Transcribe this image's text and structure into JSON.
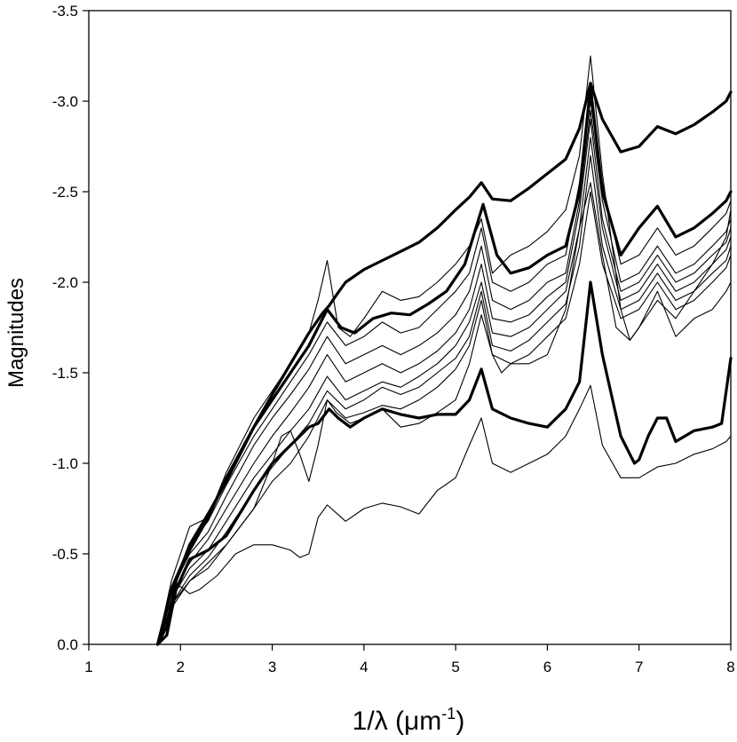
{
  "chart_data": {
    "type": "line",
    "title": "",
    "xlabel": "1/λ (μm⁻¹)",
    "xlabel_parts": {
      "base": "1/λ (μm",
      "sup": "-1",
      "close": ")"
    },
    "ylabel": "Magnitudes",
    "xlim": [
      1,
      8
    ],
    "ylim": [
      0.0,
      -3.5
    ],
    "y_axis_inverted": true,
    "grid": false,
    "legend": "none",
    "x_ticks": [
      "1",
      "2",
      "3",
      "4",
      "5",
      "6",
      "7",
      "8"
    ],
    "y_ticks": [
      "0.0",
      "-0.5",
      "-1.0",
      "-1.5",
      "-2.0",
      "-2.5",
      "-3.0",
      "-3.5"
    ],
    "line_color": "#000000",
    "series": [
      {
        "weight": "bold",
        "x": [
          1.75,
          1.85,
          1.95,
          2.1,
          2.3,
          2.5,
          2.8,
          3.0,
          3.2,
          3.4,
          3.55,
          3.62,
          3.7,
          3.8,
          4.0,
          4.2,
          4.4,
          4.6,
          4.8,
          5.0,
          5.15,
          5.28,
          5.4,
          5.6,
          5.8,
          6.0,
          6.2,
          6.35,
          6.47,
          6.6,
          6.8,
          7.0,
          7.2,
          7.4,
          7.6,
          7.8,
          7.95,
          8.0
        ],
        "y": [
          0.0,
          -0.1,
          -0.35,
          -0.55,
          -0.72,
          -0.9,
          -1.2,
          -1.38,
          -1.55,
          -1.72,
          -1.83,
          -1.87,
          -1.93,
          -2.0,
          -2.07,
          -2.12,
          -2.17,
          -2.22,
          -2.3,
          -2.4,
          -2.47,
          -2.55,
          -2.46,
          -2.45,
          -2.52,
          -2.6,
          -2.68,
          -2.85,
          -3.1,
          -2.9,
          -2.72,
          -2.75,
          -2.86,
          -2.82,
          -2.87,
          -2.94,
          -3.0,
          -3.05
        ]
      },
      {
        "weight": "bold",
        "x": [
          1.75,
          1.85,
          1.95,
          2.1,
          2.3,
          2.5,
          2.8,
          3.0,
          3.2,
          3.4,
          3.5,
          3.62,
          3.72,
          3.85,
          4.0,
          4.2,
          4.4,
          4.6,
          4.8,
          5.0,
          5.15,
          5.28,
          5.4,
          5.6,
          5.8,
          6.0,
          6.2,
          6.35,
          6.47,
          6.6,
          6.8,
          6.95,
          7.0,
          7.1,
          7.2,
          7.3,
          7.4,
          7.6,
          7.8,
          7.9,
          8.0
        ],
        "y": [
          0.0,
          -0.05,
          -0.3,
          -0.47,
          -0.52,
          -0.6,
          -0.85,
          -1.0,
          -1.1,
          -1.2,
          -1.22,
          -1.3,
          -1.25,
          -1.2,
          -1.25,
          -1.3,
          -1.27,
          -1.25,
          -1.27,
          -1.27,
          -1.35,
          -1.52,
          -1.3,
          -1.25,
          -1.22,
          -1.2,
          -1.3,
          -1.45,
          -2.0,
          -1.6,
          -1.15,
          -1.0,
          -1.02,
          -1.15,
          -1.25,
          -1.25,
          -1.12,
          -1.18,
          -1.2,
          -1.22,
          -1.58
        ]
      },
      {
        "weight": "bold",
        "x": [
          1.75,
          1.9,
          2.1,
          2.3,
          2.5,
          2.8,
          3.0,
          3.2,
          3.4,
          3.6,
          3.75,
          3.9,
          4.1,
          4.3,
          4.5,
          4.7,
          4.9,
          5.1,
          5.3,
          5.45,
          5.6,
          5.8,
          6.0,
          6.2,
          6.35,
          6.47,
          6.6,
          6.8,
          7.0,
          7.2,
          7.4,
          7.6,
          7.8,
          7.95,
          8.0
        ],
        "y": [
          0.0,
          -0.3,
          -0.52,
          -0.7,
          -0.92,
          -1.2,
          -1.35,
          -1.5,
          -1.65,
          -1.85,
          -1.75,
          -1.72,
          -1.8,
          -1.83,
          -1.82,
          -1.88,
          -1.95,
          -2.1,
          -2.43,
          -2.15,
          -2.05,
          -2.08,
          -2.15,
          -2.2,
          -2.5,
          -3.08,
          -2.5,
          -2.15,
          -2.3,
          -2.42,
          -2.25,
          -2.3,
          -2.38,
          -2.45,
          -2.5
        ]
      },
      {
        "weight": "normal",
        "x": [
          1.75,
          1.9,
          2.1,
          2.3,
          2.5,
          2.8,
          3.0,
          3.2,
          3.4,
          3.5,
          3.6,
          3.72,
          3.85,
          4.0,
          4.2,
          4.4,
          4.6,
          4.8,
          5.0,
          5.15,
          5.28,
          5.4,
          5.6,
          5.8,
          6.0,
          6.2,
          6.35,
          6.47,
          6.6,
          6.8,
          6.9,
          7.0,
          7.2,
          7.4,
          7.6,
          7.8,
          7.95,
          8.0
        ],
        "y": [
          0.0,
          -0.35,
          -0.65,
          -0.7,
          -0.95,
          -1.25,
          -1.4,
          -1.55,
          -1.72,
          -1.9,
          -2.12,
          -1.75,
          -1.7,
          -1.8,
          -1.95,
          -1.9,
          -1.92,
          -2.0,
          -2.1,
          -2.2,
          -2.35,
          -2.05,
          -2.15,
          -2.2,
          -2.28,
          -2.4,
          -2.7,
          -3.25,
          -2.6,
          -1.85,
          -1.68,
          -1.75,
          -1.9,
          -1.8,
          -1.95,
          -2.1,
          -2.25,
          -2.4
        ]
      },
      {
        "weight": "normal",
        "x": [
          1.75,
          1.9,
          2.1,
          2.3,
          2.5,
          2.8,
          3.0,
          3.2,
          3.4,
          3.6,
          3.8,
          4.0,
          4.2,
          4.4,
          4.6,
          4.8,
          5.0,
          5.15,
          5.28,
          5.4,
          5.6,
          5.8,
          6.0,
          6.2,
          6.35,
          6.47,
          6.6,
          6.8,
          7.0,
          7.2,
          7.4,
          7.6,
          7.8,
          7.95,
          8.0
        ],
        "y": [
          0.0,
          -0.32,
          -0.55,
          -0.68,
          -0.88,
          -1.15,
          -1.3,
          -1.45,
          -1.6,
          -1.78,
          -1.65,
          -1.7,
          -1.78,
          -1.72,
          -1.75,
          -1.85,
          -1.95,
          -2.05,
          -2.3,
          -2.0,
          -1.95,
          -2.0,
          -2.1,
          -2.15,
          -2.55,
          -3.0,
          -2.55,
          -2.1,
          -2.15,
          -2.3,
          -2.15,
          -2.2,
          -2.3,
          -2.38,
          -2.45
        ]
      },
      {
        "weight": "normal",
        "x": [
          1.75,
          1.9,
          2.1,
          2.3,
          2.5,
          2.8,
          3.0,
          3.2,
          3.4,
          3.6,
          3.8,
          4.0,
          4.2,
          4.4,
          4.6,
          4.8,
          5.0,
          5.15,
          5.28,
          5.4,
          5.6,
          5.8,
          6.0,
          6.2,
          6.35,
          6.47,
          6.6,
          6.8,
          7.0,
          7.2,
          7.4,
          7.6,
          7.8,
          7.95,
          8.0
        ],
        "y": [
          0.0,
          -0.3,
          -0.5,
          -0.62,
          -0.82,
          -1.1,
          -1.25,
          -1.38,
          -1.52,
          -1.7,
          -1.55,
          -1.6,
          -1.65,
          -1.6,
          -1.65,
          -1.72,
          -1.82,
          -1.95,
          -2.2,
          -1.9,
          -1.85,
          -1.9,
          -2.0,
          -2.05,
          -2.45,
          -2.95,
          -2.45,
          -2.0,
          -2.05,
          -2.2,
          -2.05,
          -2.1,
          -2.2,
          -2.28,
          -2.35
        ]
      },
      {
        "weight": "normal",
        "x": [
          1.75,
          1.9,
          2.1,
          2.3,
          2.5,
          2.8,
          3.0,
          3.2,
          3.4,
          3.6,
          3.8,
          4.0,
          4.2,
          4.4,
          4.6,
          4.8,
          5.0,
          5.15,
          5.28,
          5.4,
          5.6,
          5.8,
          6.0,
          6.2,
          6.35,
          6.47,
          6.6,
          6.8,
          7.0,
          7.2,
          7.4,
          7.6,
          7.8,
          7.95,
          8.0
        ],
        "y": [
          0.0,
          -0.28,
          -0.45,
          -0.58,
          -0.75,
          -1.0,
          -1.15,
          -1.28,
          -1.42,
          -1.6,
          -1.45,
          -1.5,
          -1.55,
          -1.5,
          -1.55,
          -1.62,
          -1.72,
          -1.85,
          -2.1,
          -1.8,
          -1.78,
          -1.82,
          -1.92,
          -2.0,
          -2.4,
          -2.9,
          -2.35,
          -1.95,
          -2.0,
          -2.15,
          -2.0,
          -2.05,
          -2.15,
          -2.22,
          -2.3
        ]
      },
      {
        "weight": "normal",
        "x": [
          1.75,
          1.9,
          2.1,
          2.3,
          2.5,
          2.8,
          3.0,
          3.2,
          3.4,
          3.6,
          3.8,
          4.0,
          4.2,
          4.4,
          4.6,
          4.8,
          5.0,
          5.15,
          5.28,
          5.4,
          5.6,
          5.8,
          6.0,
          6.2,
          6.35,
          6.47,
          6.6,
          6.8,
          7.0,
          7.2,
          7.4,
          7.6,
          7.8,
          7.95,
          8.0
        ],
        "y": [
          0.0,
          -0.25,
          -0.42,
          -0.52,
          -0.68,
          -0.92,
          -1.05,
          -1.18,
          -1.3,
          -1.48,
          -1.35,
          -1.4,
          -1.45,
          -1.42,
          -1.48,
          -1.55,
          -1.65,
          -1.78,
          -2.0,
          -1.72,
          -1.7,
          -1.75,
          -1.85,
          -1.95,
          -2.3,
          -2.8,
          -2.3,
          -1.9,
          -1.95,
          -2.1,
          -1.95,
          -2.0,
          -2.1,
          -2.18,
          -2.25
        ]
      },
      {
        "weight": "normal",
        "x": [
          1.75,
          1.9,
          2.1,
          2.3,
          2.5,
          2.8,
          3.0,
          3.2,
          3.4,
          3.6,
          3.8,
          4.0,
          4.2,
          4.4,
          4.6,
          4.8,
          5.0,
          5.15,
          5.28,
          5.4,
          5.6,
          5.8,
          6.0,
          6.2,
          6.35,
          6.47,
          6.6,
          6.8,
          7.0,
          7.2,
          7.4,
          7.6,
          7.8,
          7.95,
          8.0
        ],
        "y": [
          0.0,
          -0.22,
          -0.38,
          -0.48,
          -0.62,
          -0.85,
          -0.98,
          -1.1,
          -1.22,
          -1.4,
          -1.3,
          -1.35,
          -1.42,
          -1.38,
          -1.42,
          -1.5,
          -1.58,
          -1.7,
          -1.95,
          -1.65,
          -1.62,
          -1.68,
          -1.78,
          -1.88,
          -2.2,
          -2.7,
          -2.2,
          -1.85,
          -1.9,
          -2.05,
          -1.9,
          -1.95,
          -2.05,
          -2.12,
          -2.2
        ]
      },
      {
        "weight": "normal",
        "x": [
          1.75,
          1.9,
          2.1,
          2.3,
          2.5,
          2.8,
          3.0,
          3.2,
          3.4,
          3.6,
          3.8,
          4.0,
          4.2,
          4.4,
          4.6,
          4.8,
          5.0,
          5.15,
          5.28,
          5.4,
          5.6,
          5.8,
          6.0,
          6.2,
          6.35,
          6.47,
          6.6,
          6.8,
          7.0,
          7.2,
          7.4,
          7.6,
          7.8,
          7.95,
          8.0
        ],
        "y": [
          0.0,
          -0.22,
          -0.35,
          -0.45,
          -0.55,
          -0.75,
          -0.9,
          -1.0,
          -1.15,
          -1.35,
          -1.25,
          -1.28,
          -1.32,
          -1.3,
          -1.35,
          -1.42,
          -1.52,
          -1.65,
          -1.9,
          -1.6,
          -1.55,
          -1.6,
          -1.7,
          -1.8,
          -2.1,
          -2.5,
          -2.1,
          -1.8,
          -1.85,
          -2.0,
          -1.85,
          -1.9,
          -2.0,
          -2.08,
          -2.15
        ]
      },
      {
        "weight": "normal",
        "x": [
          1.75,
          1.9,
          2.1,
          2.3,
          2.5,
          2.8,
          3.0,
          3.1,
          3.2,
          3.3,
          3.4,
          3.5,
          3.6,
          3.7,
          3.85,
          4.0,
          4.2,
          4.4,
          4.6,
          4.8,
          5.0,
          5.15,
          5.28,
          5.4,
          5.5,
          5.6,
          5.8,
          6.0,
          6.2,
          6.35,
          6.47,
          6.6,
          6.75,
          6.9,
          7.0,
          7.2,
          7.4,
          7.6,
          7.8,
          7.95,
          8.0
        ],
        "y": [
          0.0,
          -0.2,
          -0.35,
          -0.42,
          -0.55,
          -0.75,
          -1.0,
          -1.15,
          -1.18,
          -1.05,
          -0.9,
          -1.1,
          -1.35,
          -1.28,
          -1.22,
          -1.25,
          -1.3,
          -1.2,
          -1.22,
          -1.28,
          -1.35,
          -1.55,
          -1.82,
          -1.6,
          -1.5,
          -1.55,
          -1.55,
          -1.6,
          -1.85,
          -2.3,
          -2.55,
          -2.15,
          -1.75,
          -1.68,
          -1.75,
          -1.95,
          -1.7,
          -1.8,
          -1.85,
          -1.95,
          -2.0
        ]
      },
      {
        "weight": "normal",
        "x": [
          1.75,
          1.9,
          2.0,
          2.1,
          2.2,
          2.4,
          2.6,
          2.8,
          2.9,
          3.0,
          3.2,
          3.3,
          3.4,
          3.5,
          3.6,
          3.8,
          4.0,
          4.2,
          4.4,
          4.6,
          4.8,
          5.0,
          5.15,
          5.28,
          5.4,
          5.6,
          5.8,
          6.0,
          6.2,
          6.35,
          6.47,
          6.6,
          6.8,
          7.0,
          7.2,
          7.4,
          7.6,
          7.8,
          7.95,
          8.0
        ],
        "y": [
          0.0,
          -0.3,
          -0.32,
          -0.28,
          -0.3,
          -0.38,
          -0.5,
          -0.55,
          -0.55,
          -0.55,
          -0.52,
          -0.48,
          -0.5,
          -0.7,
          -0.77,
          -0.68,
          -0.75,
          -0.78,
          -0.76,
          -0.72,
          -0.85,
          -0.92,
          -1.1,
          -1.25,
          -1.0,
          -0.95,
          -1.0,
          -1.05,
          -1.15,
          -1.3,
          -1.43,
          -1.1,
          -0.92,
          -0.92,
          -0.98,
          -1.0,
          -1.05,
          -1.08,
          -1.12,
          -1.15
        ]
      }
    ]
  }
}
